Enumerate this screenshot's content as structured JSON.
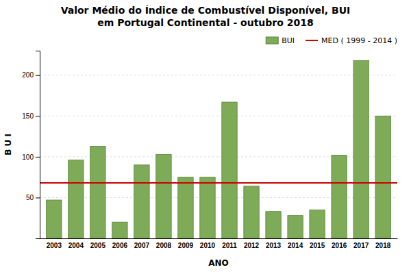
{
  "chart_data": {
    "type": "bar",
    "title": "Valor Médio do Índice de Combustível Disponível, BUI\nem Portugal Continental - outubro 2018",
    "x_label": "ANO",
    "y_label": "B U I",
    "categories": [
      "2003",
      "2004",
      "2005",
      "2006",
      "2007",
      "2008",
      "2009",
      "2010",
      "2011",
      "2012",
      "2013",
      "2014",
      "2015",
      "2016",
      "2017",
      "2018"
    ],
    "series": [
      {
        "name": "BUI",
        "color": "#7dab57",
        "values": [
          47,
          96,
          113,
          20,
          90,
          103,
          75,
          75,
          167,
          64,
          33,
          28,
          35,
          102,
          218,
          150
        ]
      }
    ],
    "reference_lines": [
      {
        "name": "MED ( 1999 - 2014 )",
        "value": 68,
        "color": "#cc0000"
      }
    ],
    "ylim": [
      0,
      230
    ],
    "yticks": [
      50,
      100,
      150,
      200
    ],
    "grid": true,
    "legend": "upper right"
  }
}
